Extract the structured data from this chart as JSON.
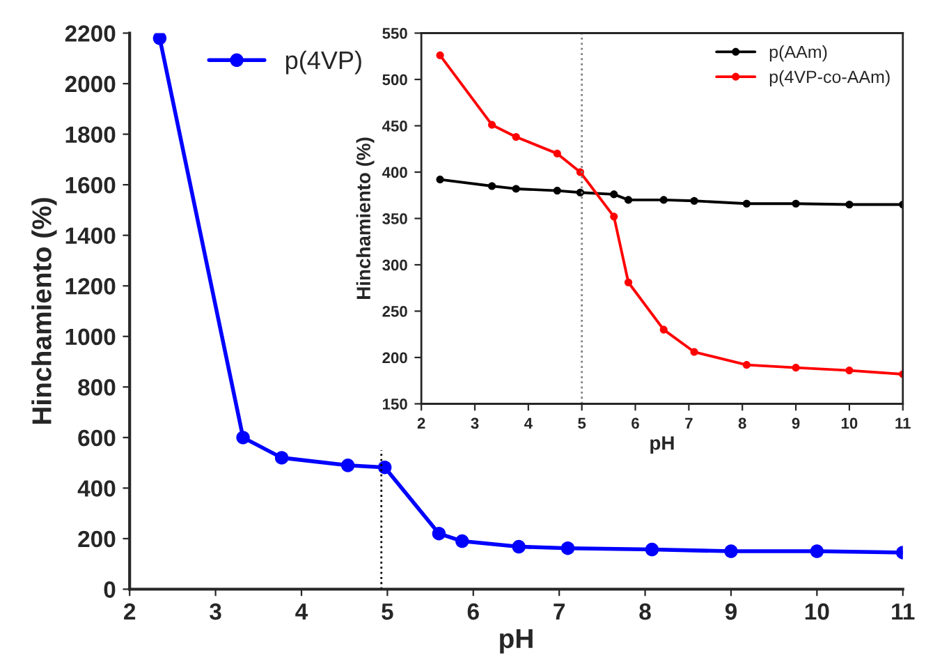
{
  "chart_data": [
    {
      "type": "line",
      "xlabel": "pH",
      "ylabel": "Hinchamiento (%)",
      "x": [
        2.35,
        3.32,
        3.77,
        4.54,
        4.97,
        5.6,
        5.87,
        6.53,
        7.1,
        8.08,
        9.0,
        10.0,
        11.0
      ],
      "series": [
        {
          "name": "p(4VP)",
          "color": "#0000ff",
          "values": [
            2180,
            600,
            520,
            490,
            482,
            220,
            190,
            168,
            162,
            157,
            150,
            150,
            145
          ]
        }
      ],
      "xlim": [
        2,
        11
      ],
      "xticks": [
        2,
        3,
        4,
        5,
        6,
        7,
        8,
        9,
        10,
        11
      ],
      "ylim": [
        0,
        2200
      ],
      "yticks": [
        0,
        200,
        400,
        600,
        800,
        1000,
        1200,
        1400,
        1600,
        1800,
        2000,
        2200
      ],
      "ref_lines": [
        {
          "axis": "x",
          "value": 4.93,
          "color": "#000000",
          "line_style": "dotted"
        }
      ],
      "marker": "circle",
      "line_style": "solid",
      "legend": "top left",
      "grid": false
    },
    {
      "type": "line",
      "xlabel": "pH",
      "ylabel": "Hinchamiento (%)",
      "x": [
        2.35,
        3.32,
        3.77,
        4.54,
        4.97,
        5.6,
        5.87,
        6.53,
        7.1,
        8.08,
        9.0,
        10.0,
        11.0
      ],
      "series": [
        {
          "name": "p(AAm)",
          "color": "#000000",
          "values": [
            392,
            385,
            382,
            380,
            378,
            376,
            370,
            370,
            369,
            366,
            366,
            365,
            365
          ]
        },
        {
          "name": "p(4VP-co-AAm)",
          "color": "#ff0000",
          "values": [
            526,
            451,
            438,
            420,
            400,
            352,
            281,
            230,
            206,
            192,
            189,
            186,
            182
          ]
        }
      ],
      "xlim": [
        2,
        11
      ],
      "xticks": [
        2,
        3,
        4,
        5,
        6,
        7,
        8,
        9,
        10,
        11
      ],
      "ylim": [
        150,
        550
      ],
      "yticks": [
        150,
        200,
        250,
        300,
        350,
        400,
        450,
        500,
        550
      ],
      "ref_lines": [
        {
          "axis": "x",
          "value": 5.0,
          "color": "#808080",
          "line_style": "dotted"
        }
      ],
      "marker": "circle",
      "line_style": "solid",
      "legend": "top right",
      "grid": false
    }
  ]
}
